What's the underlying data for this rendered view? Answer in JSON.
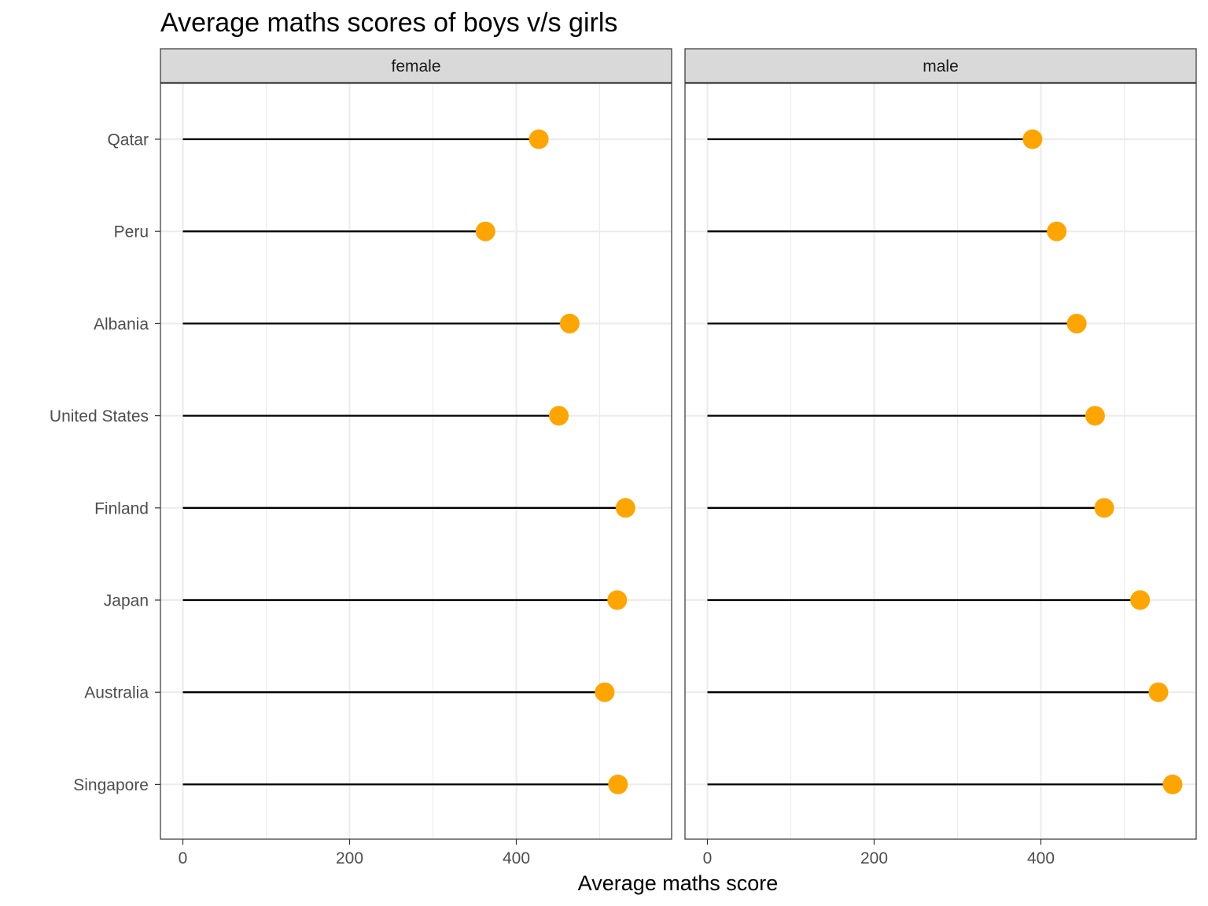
{
  "chart_data": {
    "type": "lollipop",
    "title": "Average maths scores of boys v/s girls",
    "xlabel": "Average maths score",
    "ylabel": "",
    "xlim": [
      -33,
      560
    ],
    "x_ticks": [
      0,
      200,
      400
    ],
    "x_minor_ticks": [
      100,
      300,
      500
    ],
    "categories": [
      "Qatar",
      "Peru",
      "Albania",
      "United States",
      "Finland",
      "Japan",
      "Australia",
      "Singapore"
    ],
    "panels": [
      {
        "name": "female",
        "values": [
          427,
          363,
          464,
          451,
          531,
          521,
          506,
          522
        ]
      },
      {
        "name": "male",
        "values": [
          390,
          419,
          443,
          465,
          476,
          519,
          541,
          558
        ]
      }
    ],
    "point_color": "#FFA500",
    "line_color": "#000000",
    "grid": true
  }
}
